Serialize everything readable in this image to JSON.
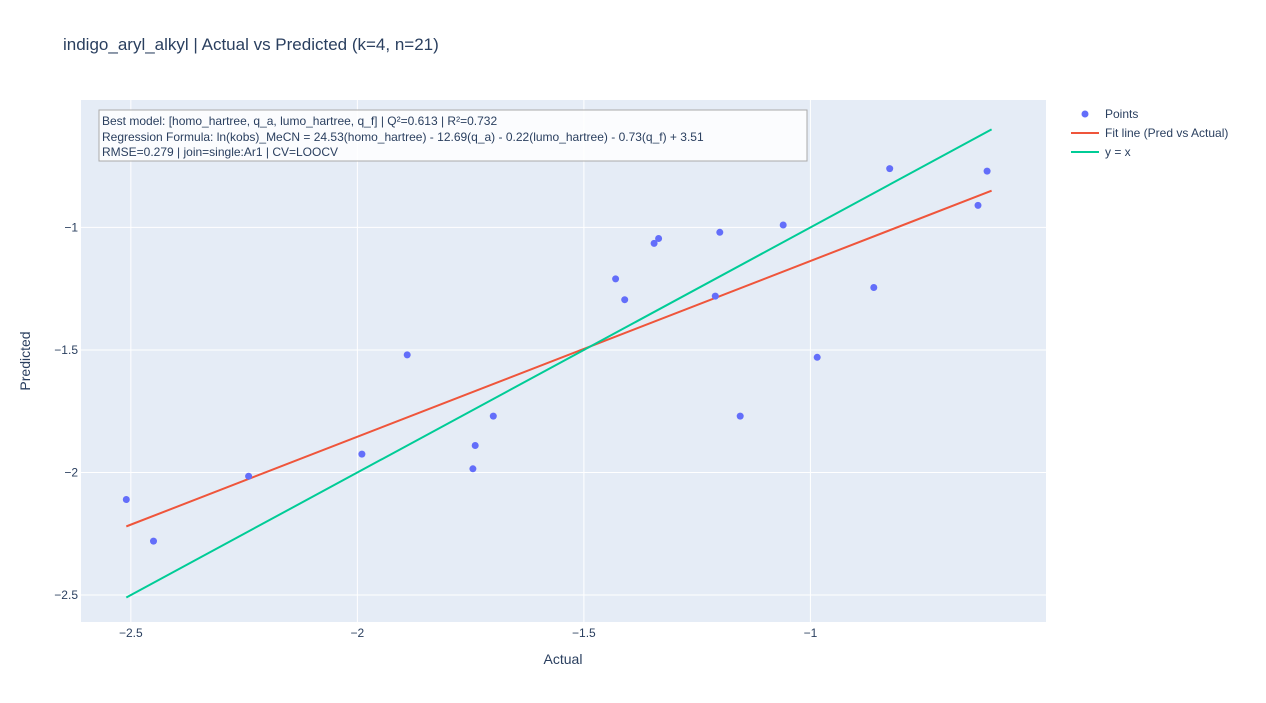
{
  "chart_data": {
    "type": "scatter",
    "title": "indigo_aryl_alkyl | Actual vs Predicted (k=4, n=21)",
    "xlabel": "Actual",
    "ylabel": "Predicted",
    "xlim": [
      -2.61,
      -0.48
    ],
    "ylim": [
      -2.61,
      -0.48
    ],
    "x_ticks": [
      -2.5,
      -2,
      -1.5,
      -1
    ],
    "x_tick_labels": [
      "−2.5",
      "−2",
      "−1.5",
      "−1"
    ],
    "y_ticks": [
      -2.5,
      -2,
      -1.5,
      -1
    ],
    "y_tick_labels": [
      "−2.5",
      "−2",
      "−1.5",
      "−1"
    ],
    "grid": true,
    "legend_position": "top-right",
    "annotation": [
      "Best model: [homo_hartree, q_a, lumo_hartree, q_f] | Q²=0.613 | R²=0.732",
      "Regression Formula: ln(kobs)_MeCN = 24.53(homo_hartree) - 12.69(q_a) - 0.22(lumo_hartree) - 0.73(q_f) + 3.51",
      "RMSE=0.279 | join=single:Ar1 | CV=LOOCV"
    ],
    "series": [
      {
        "name": "Points",
        "kind": "markers",
        "color": "#636efa",
        "x": [
          -2.51,
          -2.45,
          -2.24,
          -1.99,
          -1.89,
          -1.745,
          -1.74,
          -1.7,
          -1.43,
          -1.41,
          -1.345,
          -1.335,
          -1.21,
          -1.2,
          -1.155,
          -1.06,
          -0.985,
          -0.86,
          -0.825,
          -0.63,
          -0.61
        ],
        "y": [
          -2.11,
          -2.28,
          -2.015,
          -1.925,
          -1.52,
          -1.985,
          -1.89,
          -1.77,
          -1.21,
          -1.295,
          -1.065,
          -1.045,
          -1.28,
          -1.02,
          -1.77,
          -0.99,
          -1.53,
          -1.245,
          -0.76,
          -0.91,
          -0.77
        ]
      },
      {
        "name": "Fit line (Pred vs Actual)",
        "kind": "line",
        "color": "#ef553b",
        "x": [
          -2.51,
          -0.6
        ],
        "y": [
          -2.22,
          -0.85
        ]
      },
      {
        "name": "y = x",
        "kind": "line",
        "color": "#00cc96",
        "x": [
          -2.51,
          -0.6
        ],
        "y": [
          -2.51,
          -0.6
        ]
      }
    ]
  }
}
